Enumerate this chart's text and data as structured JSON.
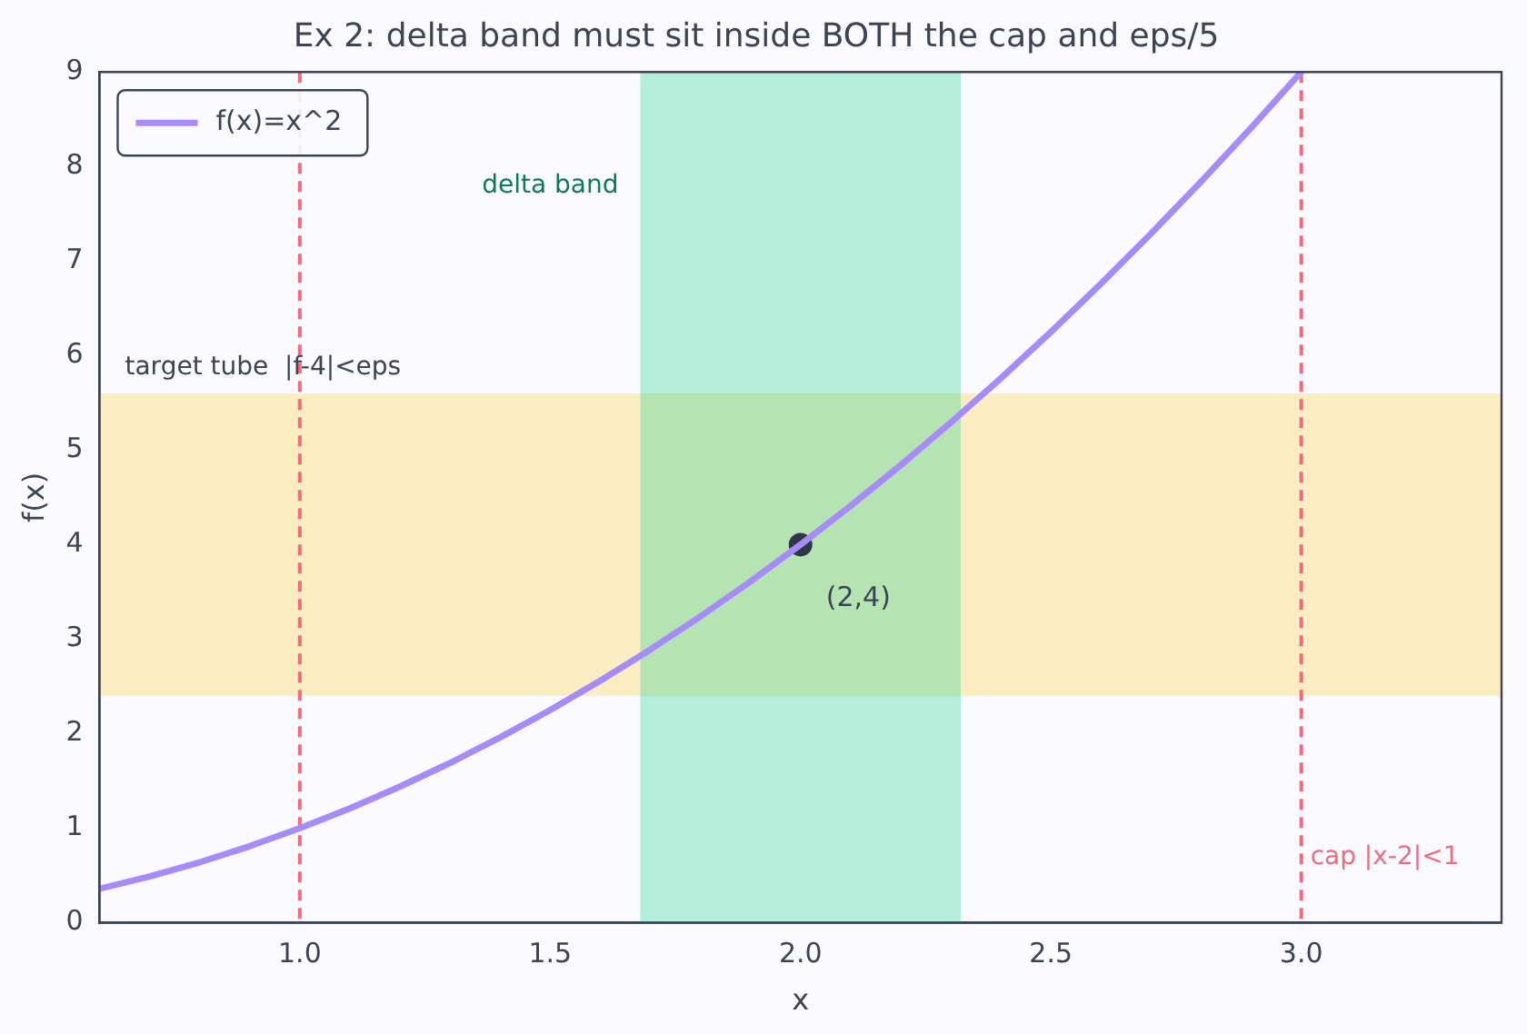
{
  "chart_data": {
    "type": "line",
    "title": "Ex 2: delta band must sit inside BOTH the cap and eps/5",
    "xlabel": "x",
    "ylabel": "f(x)",
    "xlim": [
      0.6,
      3.4
    ],
    "ylim": [
      0,
      9
    ],
    "xticks": [
      {
        "value": 1,
        "label": "1.0"
      },
      {
        "value": 1.5,
        "label": "1.5"
      },
      {
        "value": 2,
        "label": "2.0"
      },
      {
        "value": 2.5,
        "label": "2.5"
      },
      {
        "value": 3,
        "label": "3.0"
      }
    ],
    "yticks": [
      0,
      1,
      2,
      3,
      4,
      5,
      6,
      7,
      8,
      9
    ],
    "series": [
      {
        "name": "f(x)=x^2",
        "color": "#a78bfa",
        "x": [
          0.6,
          0.7,
          0.8,
          0.9,
          1.0,
          1.1,
          1.2,
          1.3,
          1.4,
          1.5,
          1.6,
          1.7,
          1.8,
          1.9,
          2.0,
          2.1,
          2.2,
          2.3,
          2.4,
          2.5,
          2.6,
          2.7,
          2.8,
          2.9,
          3.0
        ],
        "values": [
          0.36,
          0.49,
          0.64,
          0.81,
          1.0,
          1.21,
          1.44,
          1.69,
          1.96,
          2.25,
          2.56,
          2.89,
          3.24,
          3.61,
          4.0,
          4.41,
          4.84,
          5.29,
          5.76,
          6.25,
          6.76,
          7.29,
          7.84,
          8.41,
          9.0
        ]
      },
      {
        "type": "scatter",
        "color": "#2d3748",
        "x": [
          2
        ],
        "values": [
          4
        ]
      }
    ],
    "bands": [
      {
        "axis": "y",
        "from": 2.4,
        "to": 5.6,
        "label": "target tube  |f-4|<eps",
        "color": "#fcd34d"
      },
      {
        "axis": "x",
        "from": 1.68,
        "to": 2.32,
        "label": "delta band",
        "color": "#34d399"
      }
    ],
    "ref_lines": [
      {
        "axis": "x",
        "value": 1,
        "label": null,
        "color": "#f06b7e",
        "line_style": "dashed"
      },
      {
        "axis": "x",
        "value": 3,
        "label": "cap |x-2|<1",
        "color": "#f06b7e",
        "line_style": "dashed"
      }
    ],
    "annotations": [
      {
        "text": "(2,4)",
        "x": 2,
        "y": 4
      }
    ],
    "legend": "top left",
    "grid": false,
    "line_style": "solid"
  }
}
